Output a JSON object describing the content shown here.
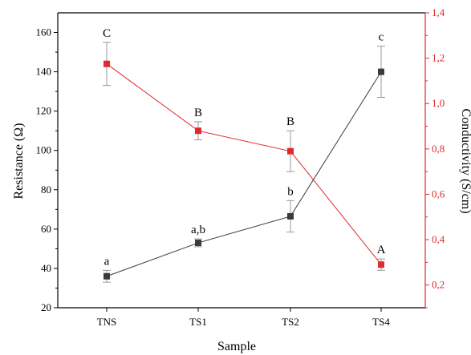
{
  "chart_data": {
    "type": "line",
    "categories": [
      "TNS",
      "TS1",
      "TS2",
      "TS4"
    ],
    "xlabel": "Sample",
    "ylabel": "Resistance (Ω)",
    "y2label": "Conductivity (S/cm)",
    "ylim": [
      20,
      170
    ],
    "y2lim": [
      0.1,
      1.4
    ],
    "yticks": [
      "20",
      "40",
      "60",
      "80",
      "100",
      "120",
      "140",
      "160"
    ],
    "y2ticks": [
      "0,2",
      "0,4",
      "0,6",
      "0,8",
      "1,0",
      "1,2",
      "1,4"
    ],
    "grid": false,
    "series": [
      {
        "axis": "left",
        "color": "#3a3a3a",
        "values": [
          36,
          53,
          66.5,
          140
        ],
        "errors": [
          3,
          2,
          8,
          13
        ],
        "labels": [
          "a",
          "a,b",
          "b",
          "c"
        ]
      },
      {
        "axis": "right",
        "color": "#e0292b",
        "values": [
          1.175,
          0.88,
          0.79,
          0.29
        ],
        "errors": [
          0.095,
          0.04,
          0.09,
          0.025
        ],
        "labels": [
          "C",
          "B",
          "B",
          "A"
        ]
      }
    ]
  }
}
